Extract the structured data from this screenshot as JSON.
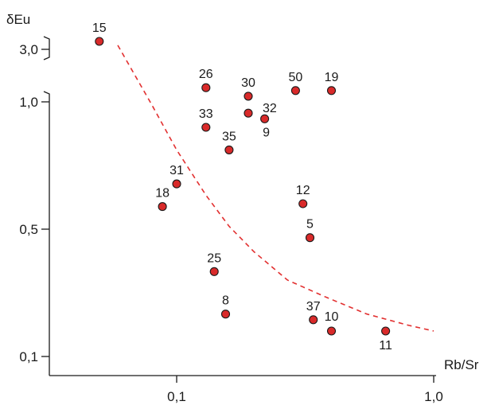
{
  "chart_data": {
    "type": "scatter",
    "title": "",
    "xlabel": "Rb/Sr",
    "ylabel": "δEu",
    "x_scale": "log",
    "xlim": [
      0.02,
      1.0
    ],
    "x_ticks": [
      {
        "value": 0.1,
        "label": "0,1"
      },
      {
        "value": 1.0,
        "label": "1,0"
      }
    ],
    "y_axis_main": {
      "range": [
        0.1,
        1.0
      ],
      "ticks": [
        {
          "value": 0.1,
          "label": "0,1"
        },
        {
          "value": 0.5,
          "label": "0,5"
        },
        {
          "value": 1.0,
          "label": "1,0"
        }
      ]
    },
    "y_axis_break": {
      "ticks": [
        {
          "value": 3.0,
          "label": "3,0"
        }
      ]
    },
    "points": [
      {
        "label": "15",
        "x": 0.05,
        "y": 3.2,
        "segment": "upper"
      },
      {
        "label": "26",
        "x": 0.13,
        "y": 1.05
      },
      {
        "label": "30",
        "x": 0.19,
        "y": 1.02
      },
      {
        "label": "50",
        "x": 0.29,
        "y": 1.04
      },
      {
        "label": "19",
        "x": 0.4,
        "y": 1.04
      },
      {
        "label": "32",
        "x": 0.19,
        "y": 0.96
      },
      {
        "label": "9",
        "x": 0.22,
        "y": 0.94
      },
      {
        "label": "33",
        "x": 0.13,
        "y": 0.91
      },
      {
        "label": "35",
        "x": 0.16,
        "y": 0.83
      },
      {
        "label": "31",
        "x": 0.1,
        "y": 0.71
      },
      {
        "label": "18",
        "x": 0.088,
        "y": 0.63
      },
      {
        "label": "12",
        "x": 0.31,
        "y": 0.64
      },
      {
        "label": "5",
        "x": 0.33,
        "y": 0.52
      },
      {
        "label": "25",
        "x": 0.14,
        "y": 0.4
      },
      {
        "label": "8",
        "x": 0.155,
        "y": 0.25
      },
      {
        "label": "37",
        "x": 0.34,
        "y": 0.23
      },
      {
        "label": "10",
        "x": 0.4,
        "y": 0.19
      },
      {
        "label": "11",
        "x": 0.65,
        "y": 0.19
      }
    ],
    "trend_curve": {
      "style": "dashed",
      "color": "#e23030",
      "points": [
        {
          "x": 0.059,
          "y": 1.2
        },
        {
          "x": 0.08,
          "y": 0.99
        },
        {
          "x": 0.1,
          "y": 0.83
        },
        {
          "x": 0.13,
          "y": 0.67
        },
        {
          "x": 0.16,
          "y": 0.56
        },
        {
          "x": 0.2,
          "y": 0.47
        },
        {
          "x": 0.27,
          "y": 0.37
        },
        {
          "x": 0.38,
          "y": 0.31
        },
        {
          "x": 0.55,
          "y": 0.25
        },
        {
          "x": 0.8,
          "y": 0.21
        },
        {
          "x": 1.0,
          "y": 0.19
        }
      ]
    },
    "colors": {
      "point_fill": "#d92a2a",
      "trend": "#e23030",
      "axis": "#1a1a1a"
    },
    "grid": false,
    "legend": "none"
  }
}
